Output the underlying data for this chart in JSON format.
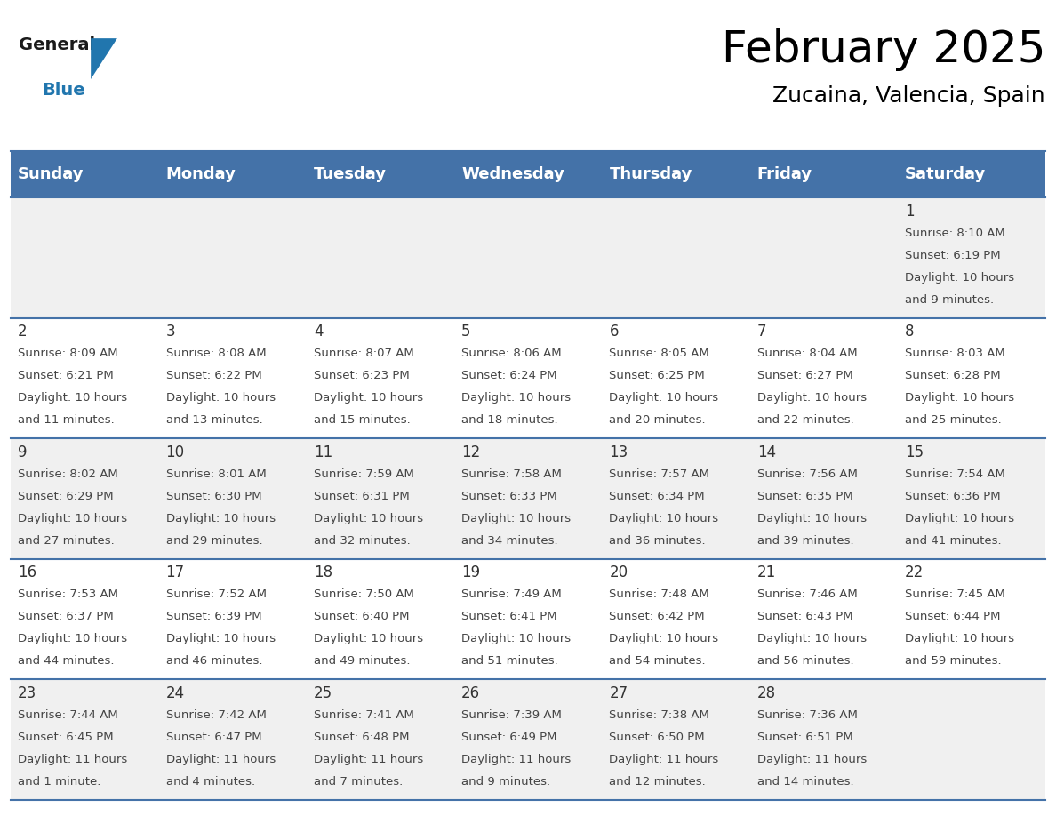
{
  "title": "February 2025",
  "subtitle": "Zucaina, Valencia, Spain",
  "header_bg": "#4472a8",
  "header_text": "#ffffff",
  "row_bg_odd": "#f0f0f0",
  "row_bg_even": "#ffffff",
  "cell_border": "#4472a8",
  "day_headers": [
    "Sunday",
    "Monday",
    "Tuesday",
    "Wednesday",
    "Thursday",
    "Friday",
    "Saturday"
  ],
  "calendar_data": [
    [
      null,
      null,
      null,
      null,
      null,
      null,
      {
        "day": 1,
        "sunrise": "8:10 AM",
        "sunset": "6:19 PM",
        "daylight": "10 hours\nand 9 minutes."
      }
    ],
    [
      {
        "day": 2,
        "sunrise": "8:09 AM",
        "sunset": "6:21 PM",
        "daylight": "10 hours\nand 11 minutes."
      },
      {
        "day": 3,
        "sunrise": "8:08 AM",
        "sunset": "6:22 PM",
        "daylight": "10 hours\nand 13 minutes."
      },
      {
        "day": 4,
        "sunrise": "8:07 AM",
        "sunset": "6:23 PM",
        "daylight": "10 hours\nand 15 minutes."
      },
      {
        "day": 5,
        "sunrise": "8:06 AM",
        "sunset": "6:24 PM",
        "daylight": "10 hours\nand 18 minutes."
      },
      {
        "day": 6,
        "sunrise": "8:05 AM",
        "sunset": "6:25 PM",
        "daylight": "10 hours\nand 20 minutes."
      },
      {
        "day": 7,
        "sunrise": "8:04 AM",
        "sunset": "6:27 PM",
        "daylight": "10 hours\nand 22 minutes."
      },
      {
        "day": 8,
        "sunrise": "8:03 AM",
        "sunset": "6:28 PM",
        "daylight": "10 hours\nand 25 minutes."
      }
    ],
    [
      {
        "day": 9,
        "sunrise": "8:02 AM",
        "sunset": "6:29 PM",
        "daylight": "10 hours\nand 27 minutes."
      },
      {
        "day": 10,
        "sunrise": "8:01 AM",
        "sunset": "6:30 PM",
        "daylight": "10 hours\nand 29 minutes."
      },
      {
        "day": 11,
        "sunrise": "7:59 AM",
        "sunset": "6:31 PM",
        "daylight": "10 hours\nand 32 minutes."
      },
      {
        "day": 12,
        "sunrise": "7:58 AM",
        "sunset": "6:33 PM",
        "daylight": "10 hours\nand 34 minutes."
      },
      {
        "day": 13,
        "sunrise": "7:57 AM",
        "sunset": "6:34 PM",
        "daylight": "10 hours\nand 36 minutes."
      },
      {
        "day": 14,
        "sunrise": "7:56 AM",
        "sunset": "6:35 PM",
        "daylight": "10 hours\nand 39 minutes."
      },
      {
        "day": 15,
        "sunrise": "7:54 AM",
        "sunset": "6:36 PM",
        "daylight": "10 hours\nand 41 minutes."
      }
    ],
    [
      {
        "day": 16,
        "sunrise": "7:53 AM",
        "sunset": "6:37 PM",
        "daylight": "10 hours\nand 44 minutes."
      },
      {
        "day": 17,
        "sunrise": "7:52 AM",
        "sunset": "6:39 PM",
        "daylight": "10 hours\nand 46 minutes."
      },
      {
        "day": 18,
        "sunrise": "7:50 AM",
        "sunset": "6:40 PM",
        "daylight": "10 hours\nand 49 minutes."
      },
      {
        "day": 19,
        "sunrise": "7:49 AM",
        "sunset": "6:41 PM",
        "daylight": "10 hours\nand 51 minutes."
      },
      {
        "day": 20,
        "sunrise": "7:48 AM",
        "sunset": "6:42 PM",
        "daylight": "10 hours\nand 54 minutes."
      },
      {
        "day": 21,
        "sunrise": "7:46 AM",
        "sunset": "6:43 PM",
        "daylight": "10 hours\nand 56 minutes."
      },
      {
        "day": 22,
        "sunrise": "7:45 AM",
        "sunset": "6:44 PM",
        "daylight": "10 hours\nand 59 minutes."
      }
    ],
    [
      {
        "day": 23,
        "sunrise": "7:44 AM",
        "sunset": "6:45 PM",
        "daylight": "11 hours\nand 1 minute."
      },
      {
        "day": 24,
        "sunrise": "7:42 AM",
        "sunset": "6:47 PM",
        "daylight": "11 hours\nand 4 minutes."
      },
      {
        "day": 25,
        "sunrise": "7:41 AM",
        "sunset": "6:48 PM",
        "daylight": "11 hours\nand 7 minutes."
      },
      {
        "day": 26,
        "sunrise": "7:39 AM",
        "sunset": "6:49 PM",
        "daylight": "11 hours\nand 9 minutes."
      },
      {
        "day": 27,
        "sunrise": "7:38 AM",
        "sunset": "6:50 PM",
        "daylight": "11 hours\nand 12 minutes."
      },
      {
        "day": 28,
        "sunrise": "7:36 AM",
        "sunset": "6:51 PM",
        "daylight": "11 hours\nand 14 minutes."
      },
      null
    ]
  ],
  "num_cols": 7,
  "num_rows": 5,
  "title_fontsize": 36,
  "subtitle_fontsize": 18,
  "header_fontsize": 13,
  "day_num_fontsize": 12,
  "cell_text_fontsize": 9.5,
  "logo_general_color": "#1a1a1a",
  "logo_blue_color": "#2176ae",
  "logo_triangle_color": "#2176ae"
}
